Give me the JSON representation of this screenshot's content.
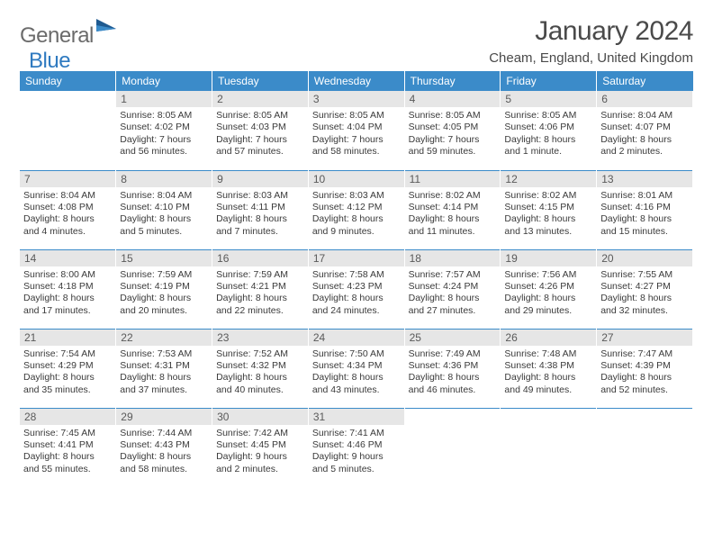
{
  "brand": {
    "text1": "General",
    "text2": "Blue"
  },
  "title": "January 2024",
  "location": "Cheam, England, United Kingdom",
  "colors": {
    "header_bg": "#3b8bc9",
    "header_text": "#ffffff",
    "daynum_bg": "#e6e6e6",
    "row_border": "#3b8bc9",
    "logo_gray": "#6b6b6b",
    "logo_blue": "#2f7ac0"
  },
  "day_headers": [
    "Sunday",
    "Monday",
    "Tuesday",
    "Wednesday",
    "Thursday",
    "Friday",
    "Saturday"
  ],
  "weeks": [
    [
      null,
      {
        "n": "1",
        "sr": "8:05 AM",
        "ss": "4:02 PM",
        "dl": "7 hours and 56 minutes."
      },
      {
        "n": "2",
        "sr": "8:05 AM",
        "ss": "4:03 PM",
        "dl": "7 hours and 57 minutes."
      },
      {
        "n": "3",
        "sr": "8:05 AM",
        "ss": "4:04 PM",
        "dl": "7 hours and 58 minutes."
      },
      {
        "n": "4",
        "sr": "8:05 AM",
        "ss": "4:05 PM",
        "dl": "7 hours and 59 minutes."
      },
      {
        "n": "5",
        "sr": "8:05 AM",
        "ss": "4:06 PM",
        "dl": "8 hours and 1 minute."
      },
      {
        "n": "6",
        "sr": "8:04 AM",
        "ss": "4:07 PM",
        "dl": "8 hours and 2 minutes."
      }
    ],
    [
      {
        "n": "7",
        "sr": "8:04 AM",
        "ss": "4:08 PM",
        "dl": "8 hours and 4 minutes."
      },
      {
        "n": "8",
        "sr": "8:04 AM",
        "ss": "4:10 PM",
        "dl": "8 hours and 5 minutes."
      },
      {
        "n": "9",
        "sr": "8:03 AM",
        "ss": "4:11 PM",
        "dl": "8 hours and 7 minutes."
      },
      {
        "n": "10",
        "sr": "8:03 AM",
        "ss": "4:12 PM",
        "dl": "8 hours and 9 minutes."
      },
      {
        "n": "11",
        "sr": "8:02 AM",
        "ss": "4:14 PM",
        "dl": "8 hours and 11 minutes."
      },
      {
        "n": "12",
        "sr": "8:02 AM",
        "ss": "4:15 PM",
        "dl": "8 hours and 13 minutes."
      },
      {
        "n": "13",
        "sr": "8:01 AM",
        "ss": "4:16 PM",
        "dl": "8 hours and 15 minutes."
      }
    ],
    [
      {
        "n": "14",
        "sr": "8:00 AM",
        "ss": "4:18 PM",
        "dl": "8 hours and 17 minutes."
      },
      {
        "n": "15",
        "sr": "7:59 AM",
        "ss": "4:19 PM",
        "dl": "8 hours and 20 minutes."
      },
      {
        "n": "16",
        "sr": "7:59 AM",
        "ss": "4:21 PM",
        "dl": "8 hours and 22 minutes."
      },
      {
        "n": "17",
        "sr": "7:58 AM",
        "ss": "4:23 PM",
        "dl": "8 hours and 24 minutes."
      },
      {
        "n": "18",
        "sr": "7:57 AM",
        "ss": "4:24 PM",
        "dl": "8 hours and 27 minutes."
      },
      {
        "n": "19",
        "sr": "7:56 AM",
        "ss": "4:26 PM",
        "dl": "8 hours and 29 minutes."
      },
      {
        "n": "20",
        "sr": "7:55 AM",
        "ss": "4:27 PM",
        "dl": "8 hours and 32 minutes."
      }
    ],
    [
      {
        "n": "21",
        "sr": "7:54 AM",
        "ss": "4:29 PM",
        "dl": "8 hours and 35 minutes."
      },
      {
        "n": "22",
        "sr": "7:53 AM",
        "ss": "4:31 PM",
        "dl": "8 hours and 37 minutes."
      },
      {
        "n": "23",
        "sr": "7:52 AM",
        "ss": "4:32 PM",
        "dl": "8 hours and 40 minutes."
      },
      {
        "n": "24",
        "sr": "7:50 AM",
        "ss": "4:34 PM",
        "dl": "8 hours and 43 minutes."
      },
      {
        "n": "25",
        "sr": "7:49 AM",
        "ss": "4:36 PM",
        "dl": "8 hours and 46 minutes."
      },
      {
        "n": "26",
        "sr": "7:48 AM",
        "ss": "4:38 PM",
        "dl": "8 hours and 49 minutes."
      },
      {
        "n": "27",
        "sr": "7:47 AM",
        "ss": "4:39 PM",
        "dl": "8 hours and 52 minutes."
      }
    ],
    [
      {
        "n": "28",
        "sr": "7:45 AM",
        "ss": "4:41 PM",
        "dl": "8 hours and 55 minutes."
      },
      {
        "n": "29",
        "sr": "7:44 AM",
        "ss": "4:43 PM",
        "dl": "8 hours and 58 minutes."
      },
      {
        "n": "30",
        "sr": "7:42 AM",
        "ss": "4:45 PM",
        "dl": "9 hours and 2 minutes."
      },
      {
        "n": "31",
        "sr": "7:41 AM",
        "ss": "4:46 PM",
        "dl": "9 hours and 5 minutes."
      },
      null,
      null,
      null
    ]
  ],
  "labels": {
    "sunrise": "Sunrise:",
    "sunset": "Sunset:",
    "daylight": "Daylight:"
  }
}
